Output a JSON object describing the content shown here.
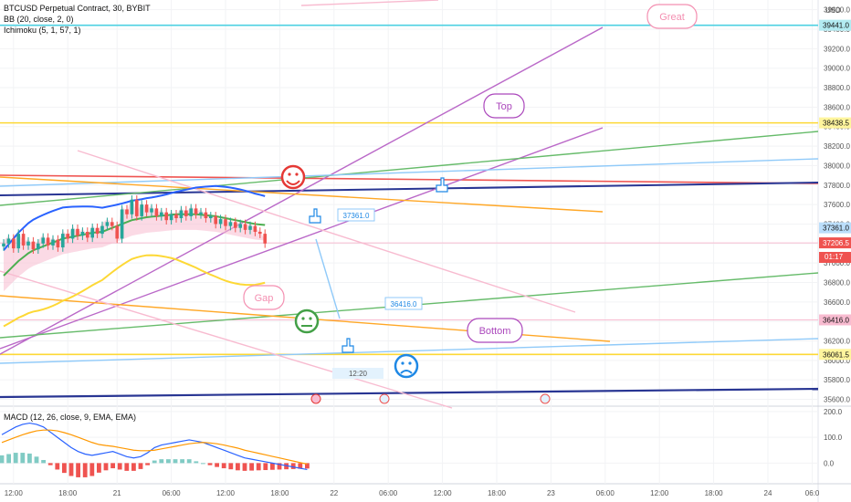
{
  "legend": {
    "title": "BTCUSD Perpetual Contract, 30, BYBIT",
    "bb": "BB (20, close, 2, 0)",
    "ichimoku": "Ichimoku (5, 1, 57, 1)",
    "macd": "MACD (12, 26, close, 9, EMA, EMA)"
  },
  "currency": "USD",
  "countdown": "01:17",
  "time_label": "12:20",
  "annotations": [
    "Great",
    "Top",
    "Gap",
    "Bottom"
  ],
  "colors": {
    "up": "#26a69a",
    "down": "#ef5350",
    "bb_mid": "#4caf50",
    "bb_upper": "#2962ff",
    "bb_lower": "#fdd835",
    "cloud": "#f8bbd0",
    "purple": "#ba68c8",
    "orange": "#ffa726",
    "cyan": "#4dd0e1",
    "navy": "#283593",
    "macd": "#2962ff",
    "signal": "#ff9800"
  },
  "chart_data": {
    "type": "line",
    "title": "BTCUSD Perpetual Contract, 30, BYBIT",
    "y_ticks": [
      "39600.0",
      "39400.0",
      "39200.0",
      "39000.0",
      "38800.0",
      "38600.0",
      "38400.0",
      "38200.0",
      "38000.0",
      "37800.0",
      "37600.0",
      "37400.0",
      "37200.0",
      "37000.0",
      "36800.0",
      "36600.0",
      "36400.0",
      "36200.0",
      "36000.0",
      "35800.0",
      "35600.0"
    ],
    "y_values": [
      39600,
      39400,
      39200,
      39000,
      38800,
      38600,
      38400,
      38200,
      38000,
      37800,
      37600,
      37400,
      37200,
      37000,
      36800,
      36600,
      36400,
      36200,
      36000,
      35800,
      35600
    ],
    "ylim": [
      35530,
      39700
    ],
    "x_ticks": [
      "12:00",
      "18:00",
      "21",
      "06:00",
      "12:00",
      "18:00",
      "22",
      "06:00",
      "12:00",
      "18:00",
      "23",
      "06:00",
      "12:00",
      "18:00",
      "24",
      "06:0"
    ],
    "x_tick_slots": [
      2,
      13,
      23,
      34,
      45,
      56,
      67,
      78,
      89,
      100,
      111,
      122,
      133,
      144,
      155,
      164
    ],
    "price_labels": [
      {
        "text": "39441.0",
        "value": 39441,
        "bg": "#b2ebf2"
      },
      {
        "text": "38438.5",
        "value": 38438.5,
        "bg": "#fff59d"
      },
      {
        "text": "37361.0",
        "value": 37361,
        "bg": "#bbdefb"
      },
      {
        "text": "37206.5",
        "value": 37206.5,
        "bg": "#ef5350"
      },
      {
        "text": "36416.0",
        "value": 36416,
        "bg": "#f8bbd0"
      },
      {
        "text": "36061.5",
        "value": 36061.5,
        "bg": "#fff59d"
      }
    ],
    "series": [
      {
        "name": "Price",
        "values": [
          37200,
          37250,
          37150,
          37300,
          37180,
          37220,
          37140,
          37200,
          37260,
          37180,
          37240,
          37160,
          37300,
          37250,
          37350,
          37280,
          37320,
          37260,
          37360,
          37300,
          37380,
          37420,
          37380,
          37250,
          37550,
          37500,
          37650,
          37480,
          37600,
          37520,
          37560,
          37480,
          37520,
          37440,
          37500,
          37460,
          37540,
          37480,
          37560,
          37500,
          37520,
          37460,
          37480,
          37400,
          37450,
          37380,
          37420,
          37360,
          37400,
          37340,
          37380,
          37320,
          37300,
          37200
        ]
      },
      {
        "name": "BB Basis",
        "values": [
          36870,
          36920,
          36970,
          37020,
          37060,
          37100,
          37130,
          37150,
          37170,
          37190,
          37210,
          37230,
          37250,
          37260,
          37270,
          37280,
          37290,
          37300,
          37310,
          37315,
          37320,
          37340,
          37360,
          37380,
          37400,
          37420,
          37440,
          37450,
          37460,
          37470,
          37475,
          37480,
          37485,
          37490,
          37495,
          37500,
          37500,
          37500,
          37500,
          37500,
          37495,
          37490,
          37485,
          37480,
          37470,
          37460,
          37450,
          37440,
          37430,
          37420,
          37410,
          37400,
          37395,
          37390
        ]
      }
    ],
    "macd": {
      "ticks": [
        "200.0",
        "100.0",
        "0.0"
      ],
      "tick_values": [
        200,
        100,
        0
      ],
      "ylim": [
        -80,
        210
      ],
      "macd_line": [
        110,
        125,
        140,
        150,
        155,
        150,
        140,
        120,
        100,
        80,
        60,
        45,
        35,
        30,
        35,
        40,
        45,
        35,
        25,
        20,
        25,
        40,
        60,
        70,
        75,
        80,
        85,
        90,
        85,
        80,
        70,
        60,
        50,
        40,
        30,
        20,
        15,
        10,
        5,
        0,
        -5,
        -10,
        -15,
        -20,
        -25
      ],
      "signal_line": [
        80,
        90,
        100,
        110,
        118,
        125,
        128,
        128,
        125,
        118,
        110,
        100,
        90,
        80,
        72,
        68,
        65,
        60,
        55,
        50,
        48,
        48,
        50,
        55,
        60,
        65,
        70,
        75,
        78,
        80,
        78,
        75,
        70,
        64,
        58,
        50,
        44,
        38,
        32,
        26,
        20,
        14,
        8,
        2,
        -4
      ],
      "histogram": [
        30,
        35,
        40,
        40,
        37,
        25,
        12,
        -8,
        -25,
        -38,
        -50,
        -55,
        -55,
        -50,
        -37,
        -28,
        -20,
        -25,
        -30,
        -30,
        -23,
        -8,
        10,
        15,
        15,
        15,
        15,
        15,
        7,
        0,
        -8,
        -15,
        -20,
        -24,
        -28,
        -30,
        -29,
        -28,
        -27,
        -26,
        -25,
        -24,
        -23,
        -22,
        -21
      ]
    }
  }
}
